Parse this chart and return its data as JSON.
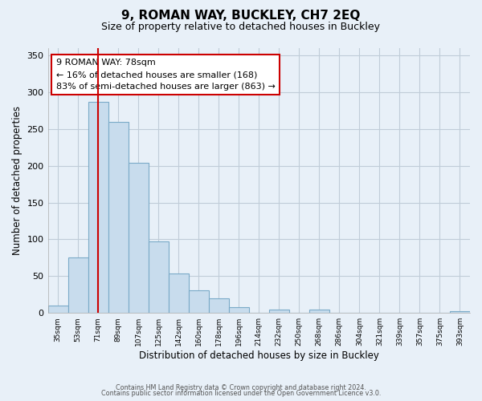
{
  "title": "9, ROMAN WAY, BUCKLEY, CH7 2EQ",
  "subtitle": "Size of property relative to detached houses in Buckley",
  "xlabel": "Distribution of detached houses by size in Buckley",
  "ylabel": "Number of detached properties",
  "bar_labels": [
    "35sqm",
    "53sqm",
    "71sqm",
    "89sqm",
    "107sqm",
    "125sqm",
    "142sqm",
    "160sqm",
    "178sqm",
    "196sqm",
    "214sqm",
    "232sqm",
    "250sqm",
    "268sqm",
    "286sqm",
    "304sqm",
    "321sqm",
    "339sqm",
    "357sqm",
    "375sqm",
    "393sqm"
  ],
  "bar_values": [
    10,
    75,
    287,
    260,
    204,
    97,
    54,
    31,
    20,
    8,
    0,
    5,
    0,
    5,
    0,
    0,
    0,
    0,
    0,
    0,
    2
  ],
  "bar_color": "#c8dced",
  "bar_edge_color": "#7aaac8",
  "vline_x": 2,
  "vline_color": "#cc0000",
  "ylim": [
    0,
    360
  ],
  "yticks": [
    0,
    50,
    100,
    150,
    200,
    250,
    300,
    350
  ],
  "annotation_text": "9 ROMAN WAY: 78sqm\n← 16% of detached houses are smaller (168)\n83% of semi-detached houses are larger (863) →",
  "annotation_box_color": "#ffffff",
  "annotation_box_edge": "#cc0000",
  "footer_line1": "Contains HM Land Registry data © Crown copyright and database right 2024.",
  "footer_line2": "Contains public sector information licensed under the Open Government Licence v3.0.",
  "background_color": "#e8f0f8",
  "plot_bg_color": "#e8f0f8",
  "grid_color": "#c0ccd8"
}
